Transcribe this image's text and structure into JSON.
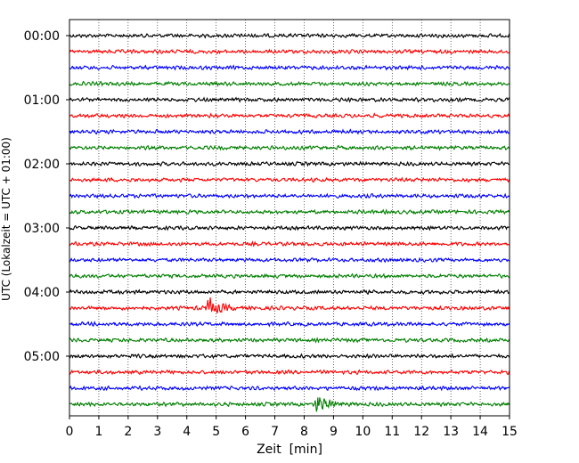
{
  "chart_data": {
    "type": "line",
    "title": "",
    "xlabel": "Zeit  [min]",
    "ylabel": "UTC (Lokalzeit = UTC + 01:00)",
    "xlim": [
      0,
      15
    ],
    "x_ticks": [
      "0",
      "1",
      "2",
      "3",
      "4",
      "5",
      "6",
      "7",
      "8",
      "9",
      "10",
      "11",
      "12",
      "13",
      "14",
      "15"
    ],
    "y_ticks": [
      "00:00",
      "01:00",
      "02:00",
      "03:00",
      "04:00",
      "05:00"
    ],
    "grid": true,
    "trace_interval_min": 15,
    "trace_colors": [
      "#000000",
      "#ff0000",
      "#0000ff",
      "#007f00"
    ],
    "traces": [
      {
        "start": "00:00",
        "color": "#000000"
      },
      {
        "start": "00:15",
        "color": "#ff0000"
      },
      {
        "start": "00:30",
        "color": "#0000ff"
      },
      {
        "start": "00:45",
        "color": "#007f00"
      },
      {
        "start": "01:00",
        "color": "#000000"
      },
      {
        "start": "01:15",
        "color": "#ff0000"
      },
      {
        "start": "01:30",
        "color": "#0000ff"
      },
      {
        "start": "01:45",
        "color": "#007f00"
      },
      {
        "start": "02:00",
        "color": "#000000"
      },
      {
        "start": "02:15",
        "color": "#ff0000"
      },
      {
        "start": "02:30",
        "color": "#0000ff"
      },
      {
        "start": "02:45",
        "color": "#007f00"
      },
      {
        "start": "03:00",
        "color": "#000000"
      },
      {
        "start": "03:15",
        "color": "#ff0000"
      },
      {
        "start": "03:30",
        "color": "#0000ff"
      },
      {
        "start": "03:45",
        "color": "#007f00"
      },
      {
        "start": "04:00",
        "color": "#000000"
      },
      {
        "start": "04:15",
        "color": "#ff0000",
        "event_min": 4.7
      },
      {
        "start": "04:30",
        "color": "#0000ff"
      },
      {
        "start": "04:45",
        "color": "#007f00"
      },
      {
        "start": "05:00",
        "color": "#000000"
      },
      {
        "start": "05:15",
        "color": "#ff0000"
      },
      {
        "start": "05:30",
        "color": "#0000ff"
      },
      {
        "start": "05:45",
        "color": "#007f00",
        "event_min": 8.4
      }
    ]
  }
}
